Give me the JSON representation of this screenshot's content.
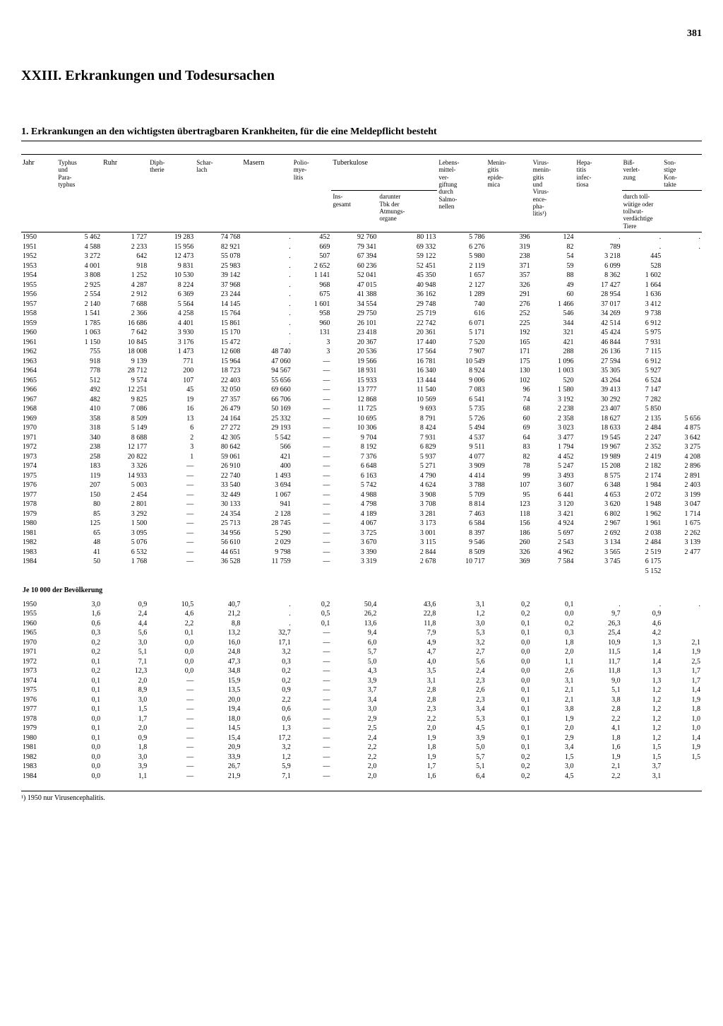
{
  "page_number": "381",
  "chapter_title": "XXIII. Erkrankungen und Todesursachen",
  "section_title": "1. Erkrankungen an den wichtigsten übertragbaren Krankheiten, für die eine Meldepflicht besteht",
  "columns": {
    "jahr": "Jahr",
    "typhus": "Typhus\nund\nPara-\ntyphus",
    "ruhr": "Ruhr",
    "diphtherie": "Diph-\ntherie",
    "scharlach": "Schar-\nlach",
    "masern": "Masern",
    "polio": "Polio-\nmye-\nlitis",
    "tuberkulose": "Tuberkulose",
    "tb_ins": "Ins-\ngesamt",
    "tb_atm": "darunter\nTbk der\nAtmungs-\norgane",
    "lebensmittel": "Lebens-\nmittel-\nver-\ngiftung\ndurch\nSalmo-\nnellen",
    "meningitis": "Menin-\ngitis\nepide-\nmica",
    "virus_meningitis": "Virus-\nmenin-\ngitis\nund\nVirus-\nence-\npha-\nlitis¹)",
    "hepatitis": "Hepa-\ntitis\ninfec-\ntiosa",
    "bissverletzung": "Biß-\nverlet-\nzung",
    "sonstige": "Son-\nstige\nKon-\ntakte",
    "tollwut_sub": "durch toll-\nwütige oder\ntollwut-\nverdächtige\nTiere"
  },
  "subheading": "Je 10 000 der Bevölkerung",
  "footnote": "¹) 1950 nur Virusencephalitis.",
  "rows_absolute": [
    [
      "1950",
      "5 462",
      "1 727",
      "19 283",
      "74 768",
      ".",
      "452",
      "92 760",
      "80 113",
      "5 786",
      "396",
      "124",
      ".",
      ".",
      "."
    ],
    [
      "1951",
      "4 588",
      "2 233",
      "15 956",
      "82 921",
      ".",
      "669",
      "79 341",
      "69 332",
      "6 276",
      "319",
      "82",
      "789",
      ".",
      "."
    ],
    [
      "1952",
      "3 272",
      "642",
      "12 473",
      "55 078",
      ".",
      "507",
      "67 394",
      "59 122",
      "5 980",
      "238",
      "54",
      "3 218",
      "445",
      ""
    ],
    [
      "1953",
      "4 001",
      "918",
      "9 831",
      "25 983",
      ".",
      "2 652",
      "60 236",
      "52 451",
      "2 119",
      "371",
      "59",
      "6 099",
      "528",
      ""
    ],
    [
      "1954",
      "3 808",
      "1 252",
      "10 530",
      "39 142",
      ".",
      "1 141",
      "52 041",
      "45 350",
      "1 657",
      "357",
      "88",
      "8 362",
      "1 602",
      ""
    ],
    [
      "1955",
      "2 925",
      "4 287",
      "8 224",
      "37 968",
      ".",
      "968",
      "47 015",
      "40 948",
      "2 127",
      "326",
      "49",
      "17 427",
      "1 664",
      ""
    ],
    [
      "1956",
      "2 554",
      "2 912",
      "6 369",
      "23 244",
      ".",
      "675",
      "41 388",
      "36 162",
      "1 289",
      "291",
      "60",
      "28 954",
      "1 636",
      ""
    ],
    [
      "1957",
      "2 140",
      "7 688",
      "5 564",
      "14 145",
      ".",
      "1 601",
      "34 554",
      "29 748",
      "740",
      "276",
      "1 466",
      "37 017",
      "3 412",
      ""
    ],
    [
      "1958",
      "1 541",
      "2 366",
      "4 258",
      "15 764",
      ".",
      "958",
      "29 750",
      "25 719",
      "616",
      "252",
      "546",
      "34 269",
      "9 738",
      ""
    ],
    [
      "1959",
      "1 785",
      "16 686",
      "4 401",
      "15 861",
      ".",
      "960",
      "26 101",
      "22 742",
      "6 071",
      "225",
      "344",
      "42 514",
      "6 912",
      ""
    ],
    [
      "1960",
      "1 063",
      "7 642",
      "3 930",
      "15 170",
      ".",
      "131",
      "23 418",
      "20 361",
      "5 171",
      "192",
      "321",
      "45 424",
      "5 975",
      ""
    ],
    [
      "1961",
      "1 150",
      "10 845",
      "3 176",
      "15 472",
      ".",
      "3",
      "20 367",
      "17 440",
      "7 520",
      "165",
      "421",
      "46 844",
      "7 931",
      ""
    ],
    [
      "1962",
      "755",
      "18 008",
      "1 473",
      "12 608",
      "48 740",
      "3",
      "20 536",
      "17 564",
      "7 907",
      "171",
      "288",
      "26 136",
      "7 115",
      ""
    ],
    [
      "1963",
      "918",
      "9 139",
      "771",
      "15 964",
      "47 060",
      "—",
      "19 566",
      "16 781",
      "10 549",
      "175",
      "1 096",
      "27 594",
      "6 912",
      ""
    ],
    [
      "1964",
      "778",
      "28 712",
      "200",
      "18 723",
      "94 567",
      "—",
      "18 931",
      "16 340",
      "8 924",
      "130",
      "1 003",
      "35 305",
      "5 927",
      ""
    ],
    [
      "1965",
      "512",
      "9 574",
      "107",
      "22 403",
      "55 656",
      "—",
      "15 933",
      "13 444",
      "9 006",
      "102",
      "520",
      "43 264",
      "6 524",
      ""
    ],
    [
      "1966",
      "492",
      "12 251",
      "45",
      "32 050",
      "69 660",
      "—",
      "13 777",
      "11 540",
      "7 083",
      "96",
      "1 580",
      "39 413",
      "7 147",
      ""
    ],
    [
      "1967",
      "482",
      "9 825",
      "19",
      "27 357",
      "66 706",
      "—",
      "12 868",
      "10 569",
      "6 541",
      "74",
      "3 192",
      "30 292",
      "7 282",
      ""
    ],
    [
      "1968",
      "410",
      "7 086",
      "16",
      "26 479",
      "50 169",
      "—",
      "11 725",
      "9 693",
      "5 735",
      "68",
      "2 238",
      "23 407",
      "5 850",
      ""
    ],
    [
      "1969",
      "358",
      "8 509",
      "13",
      "24 164",
      "25 332",
      "—",
      "10 695",
      "8 791",
      "5 726",
      "60",
      "2 358",
      "18 627",
      "2 135",
      "5 656"
    ],
    [
      "1970",
      "318",
      "5 149",
      "6",
      "27 272",
      "29 193",
      "—",
      "10 306",
      "8 424",
      "5 494",
      "69",
      "3 023",
      "18 633",
      "2 484",
      "4 875"
    ],
    [
      "1971",
      "340",
      "8 688",
      "2",
      "42 305",
      "5 542",
      "—",
      "9 704",
      "7 931",
      "4 537",
      "64",
      "3 477",
      "19 545",
      "2 247",
      "3 642"
    ],
    [
      "1972",
      "238",
      "12 177",
      "3",
      "80 642",
      "566",
      "—",
      "8 192",
      "6 829",
      "9 511",
      "83",
      "1 794",
      "19 967",
      "2 352",
      "3 275"
    ],
    [
      "1973",
      "258",
      "20 822",
      "1",
      "59 061",
      "421",
      "—",
      "7 376",
      "5 937",
      "4 077",
      "82",
      "4 452",
      "19 989",
      "2 419",
      "4 208"
    ],
    [
      "1974",
      "183",
      "3 326",
      "—",
      "26 910",
      "400",
      "—",
      "6 648",
      "5 271",
      "3 909",
      "78",
      "5 247",
      "15 208",
      "2 182",
      "2 896"
    ],
    [
      "1975",
      "119",
      "14 933",
      "—",
      "22 740",
      "1 493",
      "—",
      "6 163",
      "4 790",
      "4 414",
      "99",
      "3 493",
      "8 575",
      "2 174",
      "2 891"
    ],
    [
      "1976",
      "207",
      "5 003",
      "—",
      "33 540",
      "3 694",
      "—",
      "5 742",
      "4 624",
      "3 788",
      "107",
      "3 607",
      "6 348",
      "1 984",
      "2 403"
    ],
    [
      "1977",
      "150",
      "2 454",
      "—",
      "32 449",
      "1 067",
      "—",
      "4 988",
      "3 908",
      "5 709",
      "95",
      "6 441",
      "4 653",
      "2 072",
      "3 199"
    ],
    [
      "1978",
      "80",
      "2 801",
      "—",
      "30 133",
      "941",
      "—",
      "4 798",
      "3 708",
      "8 814",
      "123",
      "3 120",
      "3 620",
      "1 948",
      "3 047"
    ],
    [
      "1979",
      "85",
      "3 292",
      "—",
      "24 354",
      "2 128",
      "—",
      "4 189",
      "3 281",
      "7 463",
      "118",
      "3 421",
      "6 802",
      "1 962",
      "1 714"
    ],
    [
      "1980",
      "125",
      "1 500",
      "—",
      "25 713",
      "28 745",
      "—",
      "4 067",
      "3 173",
      "6 584",
      "156",
      "4 924",
      "2 967",
      "1 961",
      "1 675"
    ],
    [
      "1981",
      "65",
      "3 095",
      "—",
      "34 956",
      "5 290",
      "—",
      "3 725",
      "3 001",
      "8 397",
      "186",
      "5 697",
      "2 692",
      "2 038",
      "2 262"
    ],
    [
      "1982",
      "48",
      "5 076",
      "—",
      "56 610",
      "2 029",
      "—",
      "3 670",
      "3 115",
      "9 546",
      "260",
      "2 543",
      "3 134",
      "2 484",
      "3 139"
    ],
    [
      "1983",
      "41",
      "6 532",
      "—",
      "44 651",
      "9 798",
      "—",
      "3 390",
      "2 844",
      "8 509",
      "326",
      "4 962",
      "3 565",
      "2 519",
      "2 477"
    ],
    [
      "1984",
      "50",
      "1 768",
      "—",
      "36 528",
      "11 759",
      "—",
      "3 319",
      "2 678",
      "10 717",
      "369",
      "7 584",
      "3 745",
      "6 175",
      ""
    ],
    [
      "",
      "",
      "",
      "",
      "",
      "",
      "",
      "",
      "",
      "",
      "",
      "",
      "",
      "5 152",
      ""
    ]
  ],
  "rows_rate": [
    [
      "1950",
      "3,0",
      "0,9",
      "10,5",
      "40,7",
      ".",
      "0,2",
      "50,4",
      "43,6",
      "3,1",
      "0,2",
      "0,1",
      ".",
      ".",
      "."
    ],
    [
      "1955",
      "1,6",
      "2,4",
      "4,6",
      "21,2",
      ".",
      "0,5",
      "26,2",
      "22,8",
      "1,2",
      "0,2",
      "0,0",
      "9,7",
      "0,9",
      ""
    ],
    [
      "1960",
      "0,6",
      "4,4",
      "2,2",
      "8,8",
      ".",
      "0,1",
      "13,6",
      "11,8",
      "3,0",
      "0,1",
      "0,2",
      "26,3",
      "4,6",
      ""
    ],
    [
      "1965",
      "0,3",
      "5,6",
      "0,1",
      "13,2",
      "32,7",
      "—",
      "9,4",
      "7,9",
      "5,3",
      "0,1",
      "0,3",
      "25,4",
      "4,2",
      ""
    ],
    [
      "1970",
      "0,2",
      "3,0",
      "0,0",
      "16,0",
      "17,1",
      "—",
      "6,0",
      "4,9",
      "3,2",
      "0,0",
      "1,8",
      "10,9",
      "1,3",
      "2,1"
    ],
    [
      "1971",
      "0,2",
      "5,1",
      "0,0",
      "24,8",
      "3,2",
      "—",
      "5,7",
      "4,7",
      "2,7",
      "0,0",
      "2,0",
      "11,5",
      "1,4",
      "1,9"
    ],
    [
      "1972",
      "0,1",
      "7,1",
      "0,0",
      "47,3",
      "0,3",
      "—",
      "5,0",
      "4,0",
      "5,6",
      "0,0",
      "1,1",
      "11,7",
      "1,4",
      "2,5"
    ],
    [
      "1973",
      "0,2",
      "12,3",
      "0,0",
      "34,8",
      "0,2",
      "—",
      "4,3",
      "3,5",
      "2,4",
      "0,0",
      "2,6",
      "11,8",
      "1,3",
      "1,7"
    ],
    [
      "1974",
      "0,1",
      "2,0",
      "—",
      "15,9",
      "0,2",
      "—",
      "3,9",
      "3,1",
      "2,3",
      "0,0",
      "3,1",
      "9,0",
      "1,3",
      "1,7"
    ],
    [
      "1975",
      "0,1",
      "8,9",
      "—",
      "13,5",
      "0,9",
      "—",
      "3,7",
      "2,8",
      "2,6",
      "0,1",
      "2,1",
      "5,1",
      "1,2",
      "1,4"
    ],
    [
      "1976",
      "0,1",
      "3,0",
      "—",
      "20,0",
      "2,2",
      "—",
      "3,4",
      "2,8",
      "2,3",
      "0,1",
      "2,1",
      "3,8",
      "1,2",
      "1,9"
    ],
    [
      "1977",
      "0,1",
      "1,5",
      "—",
      "19,4",
      "0,6",
      "—",
      "3,0",
      "2,3",
      "3,4",
      "0,1",
      "3,8",
      "2,8",
      "1,2",
      "1,8"
    ],
    [
      "1978",
      "0,0",
      "1,7",
      "—",
      "18,0",
      "0,6",
      "—",
      "2,9",
      "2,2",
      "5,3",
      "0,1",
      "1,9",
      "2,2",
      "1,2",
      "1,0"
    ],
    [
      "1979",
      "0,1",
      "2,0",
      "—",
      "14,5",
      "1,3",
      "—",
      "2,5",
      "2,0",
      "4,5",
      "0,1",
      "2,0",
      "4,1",
      "1,2",
      "1,0"
    ],
    [
      "1980",
      "0,1",
      "0,9",
      "—",
      "15,4",
      "17,2",
      "—",
      "2,4",
      "1,9",
      "3,9",
      "0,1",
      "2,9",
      "1,8",
      "1,2",
      "1,4"
    ],
    [
      "1981",
      "0,0",
      "1,8",
      "—",
      "20,9",
      "3,2",
      "—",
      "2,2",
      "1,8",
      "5,0",
      "0,1",
      "3,4",
      "1,6",
      "1,5",
      "1,9"
    ],
    [
      "1982",
      "0,0",
      "3,0",
      "—",
      "33,9",
      "1,2",
      "—",
      "2,2",
      "1,9",
      "5,7",
      "0,2",
      "1,5",
      "1,9",
      "1,5",
      "1,5"
    ],
    [
      "1983",
      "0,0",
      "3,9",
      "—",
      "26,7",
      "5,9",
      "—",
      "2,0",
      "1,7",
      "5,1",
      "0,2",
      "3,0",
      "2,1",
      "3,7",
      ""
    ],
    [
      "1984",
      "0,0",
      "1,1",
      "—",
      "21,9",
      "7,1",
      "—",
      "2,0",
      "1,6",
      "6,4",
      "0,2",
      "4,5",
      "2,2",
      "3,1",
      ""
    ]
  ]
}
